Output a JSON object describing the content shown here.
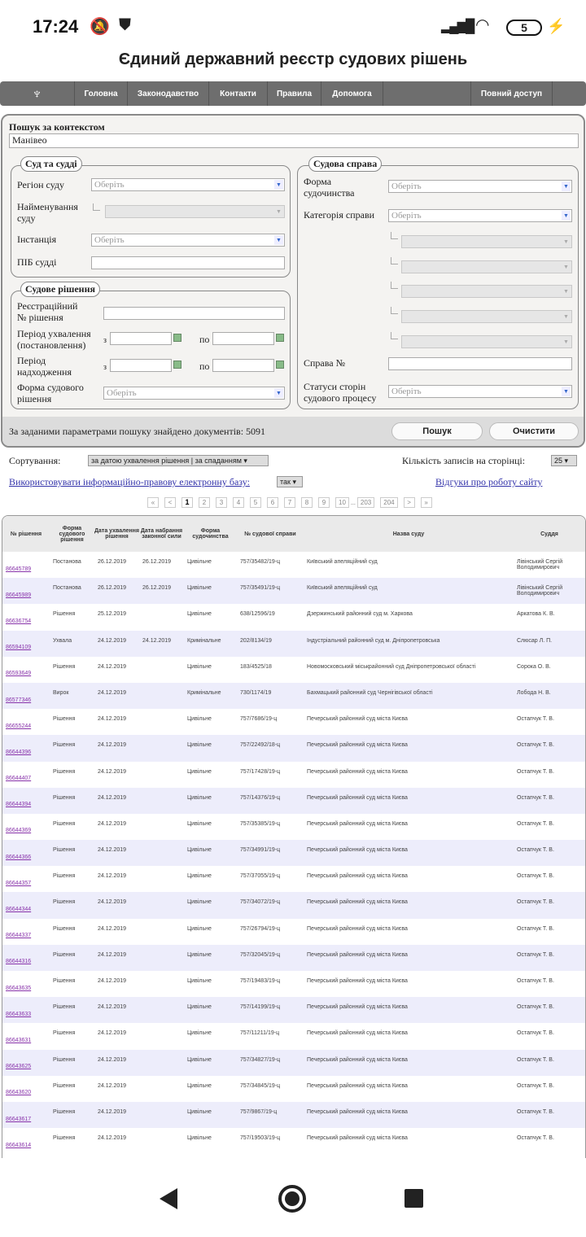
{
  "status": {
    "time": "17:24",
    "battery": "5"
  },
  "site_title": "Єдиний державний реєстр судових рішень",
  "nav": [
    "Головна",
    "Законодавство",
    "Контакти",
    "Правила",
    "Допомога",
    "Повний доступ"
  ],
  "search": {
    "context_label": "Пошук за контекстом",
    "context_value": "Манівео",
    "placeholder": "Оберіть"
  },
  "court": {
    "legend": "Суд та судді",
    "region": "Регіон суду",
    "name1": "Найменування",
    "name2": "суду",
    "instance": "Інстанція",
    "judge": "ПІБ судді"
  },
  "decision": {
    "legend": "Судове рішення",
    "reg1": "Реєстраційний",
    "reg2": "№ рішення",
    "period1": "Період ухвалення",
    "period2": "(постановлення)",
    "recv1": "Період",
    "recv2": "надходження",
    "from": "з",
    "to": "по",
    "form1": "Форма судового",
    "form2": "рішення"
  },
  "case": {
    "legend": "Судова справа",
    "form1": "Форма",
    "form2": "судочинства",
    "category": "Категорія справи",
    "case_no": "Справа №",
    "status1": "Статуси сторін",
    "status2": "судового процесу"
  },
  "result_text": "За заданими параметрами пошуку знайдено документів: 5091",
  "buttons": {
    "search": "Пошук",
    "clear": "Очистити"
  },
  "sort": {
    "label": "Сортування:",
    "value": "за датою ухвалення рішення | за спаданням",
    "per_page_label": "Кількість записів на сторінці:",
    "per_page": "25"
  },
  "base_link": "Використовувати інформаційно-правову електронну базу:",
  "base_value": "так",
  "feedback_link": "Відгуки про роботу сайту",
  "pagination": [
    "«",
    "<",
    "1",
    "2",
    "3",
    "4",
    "5",
    "6",
    "7",
    "8",
    "9",
    "10",
    "...",
    "203",
    "204",
    ">",
    "»"
  ],
  "current_page": "1",
  "columns": [
    "№ рішення",
    "Форма судового рішення",
    "Дата ухвалення рішення",
    "Дата набрання законної сили",
    "Форма судочинства",
    "№ судової справи",
    "Назва суду",
    "Суддя"
  ],
  "rows": [
    [
      "86645789",
      "Постанова",
      "26.12.2019",
      "26.12.2019",
      "Цивільне",
      "757/35482/19-ц",
      "Київський апеляційний суд",
      "Лівінський Сергій Володимирович"
    ],
    [
      "86645989",
      "Постанова",
      "26.12.2019",
      "26.12.2019",
      "Цивільне",
      "757/35491/19-ц",
      "Київський апеляційний суд",
      "Лівінський Сергій Володимирович"
    ],
    [
      "86636754",
      "Рішення",
      "25.12.2019",
      "",
      "Цивільне",
      "638/12596/19",
      "Дзержинський районний суд м. Харкова",
      "Аркатова К. В."
    ],
    [
      "86594109",
      "Ухвала",
      "24.12.2019",
      "24.12.2019",
      "Кримінальне",
      "202/8134/19",
      "Індустріальний районний суд м. Дніпропетровська",
      "Слюсар Л. П."
    ],
    [
      "86593649",
      "Рішення",
      "24.12.2019",
      "",
      "Цивільне",
      "183/4525/18",
      "Новомосковський міськрайонний суд Дніпропетровської області",
      "Сорока О. В."
    ],
    [
      "86577346",
      "Вирок",
      "24.12.2019",
      "",
      "Кримінальне",
      "730/1174/19",
      "Бахмацький районний суд Чернігівської області",
      "Лобода Н. В."
    ],
    [
      "86655244",
      "Рішення",
      "24.12.2019",
      "",
      "Цивільне",
      "757/7686/19-ц",
      "Печерський районний суд міста Києва",
      "Остапчук Т. В."
    ],
    [
      "86644396",
      "Рішення",
      "24.12.2019",
      "",
      "Цивільне",
      "757/22492/18-ц",
      "Печерський районний суд міста Києва",
      "Остапчук Т. В."
    ],
    [
      "86644407",
      "Рішення",
      "24.12.2019",
      "",
      "Цивільне",
      "757/17428/19-ц",
      "Печерський районний суд міста Києва",
      "Остапчук Т. В."
    ],
    [
      "86644394",
      "Рішення",
      "24.12.2019",
      "",
      "Цивільне",
      "757/14376/19-ц",
      "Печерський районний суд міста Києва",
      "Остапчук Т. В."
    ],
    [
      "86644369",
      "Рішення",
      "24.12.2019",
      "",
      "Цивільне",
      "757/35385/19-ц",
      "Печерський районний суд міста Києва",
      "Остапчук Т. В."
    ],
    [
      "86644366",
      "Рішення",
      "24.12.2019",
      "",
      "Цивільне",
      "757/34991/19-ц",
      "Печерський районний суд міста Києва",
      "Остапчук Т. В."
    ],
    [
      "86644357",
      "Рішення",
      "24.12.2019",
      "",
      "Цивільне",
      "757/37055/19-ц",
      "Печерський районний суд міста Києва",
      "Остапчук Т. В."
    ],
    [
      "86644344",
      "Рішення",
      "24.12.2019",
      "",
      "Цивільне",
      "757/34072/19-ц",
      "Печерський районний суд міста Києва",
      "Остапчук Т. В."
    ],
    [
      "86644337",
      "Рішення",
      "24.12.2019",
      "",
      "Цивільне",
      "757/26794/19-ц",
      "Печерський районний суд міста Києва",
      "Остапчук Т. В."
    ],
    [
      "86644316",
      "Рішення",
      "24.12.2019",
      "",
      "Цивільне",
      "757/32045/19-ц",
      "Печерський районний суд міста Києва",
      "Остапчук Т. В."
    ],
    [
      "86643635",
      "Рішення",
      "24.12.2019",
      "",
      "Цивільне",
      "757/19483/19-ц",
      "Печерський районний суд міста Києва",
      "Остапчук Т. В."
    ],
    [
      "86643633",
      "Рішення",
      "24.12.2019",
      "",
      "Цивільне",
      "757/14199/19-ц",
      "Печерський районний суд міста Києва",
      "Остапчук Т. В."
    ],
    [
      "86643631",
      "Рішення",
      "24.12.2019",
      "",
      "Цивільне",
      "757/11211/19-ц",
      "Печерський районний суд міста Києва",
      "Остапчук Т. В."
    ],
    [
      "86643625",
      "Рішення",
      "24.12.2019",
      "",
      "Цивільне",
      "757/34827/19-ц",
      "Печерський районний суд міста Києва",
      "Остапчук Т. В."
    ],
    [
      "86643620",
      "Рішення",
      "24.12.2019",
      "",
      "Цивільне",
      "757/34845/19-ц",
      "Печерський районний суд міста Києва",
      "Остапчук Т. В."
    ],
    [
      "86643617",
      "Рішення",
      "24.12.2019",
      "",
      "Цивільне",
      "757/9867/19-ц",
      "Печерський районний суд міста Києва",
      "Остапчук Т. В."
    ],
    [
      "86643614",
      "Рішення",
      "24.12.2019",
      "",
      "Цивільне",
      "757/19503/19-ц",
      "Печерський районний суд міста Києва",
      "Остапчук Т. В."
    ]
  ],
  "colors": {
    "nav_bg": "#6e6e6e",
    "panel_bg": "#f4f3f1",
    "row_alt": "#ededfb",
    "link": "#8833aa"
  }
}
